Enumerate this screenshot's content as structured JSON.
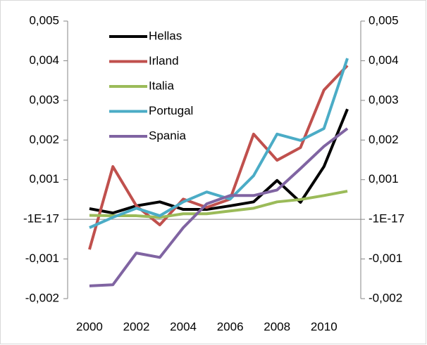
{
  "chart_data": {
    "type": "line",
    "x": [
      2000,
      2001,
      2002,
      2003,
      2004,
      2005,
      2006,
      2007,
      2008,
      2009,
      2010,
      2011
    ],
    "series": [
      {
        "name": "Hellas",
        "color": "#000000",
        "values": [
          0.00027,
          0.00016,
          0.00034,
          0.00044,
          0.00025,
          0.00025,
          0.00034,
          0.00044,
          0.00098,
          0.00043,
          0.00133,
          0.00278
        ]
      },
      {
        "name": "Irland",
        "color": "#c0504d",
        "values": [
          -0.00076,
          0.00133,
          0.00034,
          -0.00014,
          0.00051,
          0.0003,
          0.00051,
          0.00215,
          0.00149,
          0.00181,
          0.00326,
          0.00388
        ]
      },
      {
        "name": "Italia",
        "color": "#9bbb59",
        "values": [
          0.0001,
          9e-05,
          9e-05,
          5e-05,
          0.00014,
          0.00014,
          0.00021,
          0.00028,
          0.00044,
          0.0005,
          0.0006,
          0.00071
        ]
      },
      {
        "name": "Portugal",
        "color": "#4bacc6",
        "values": [
          -0.00021,
          5e-05,
          0.00028,
          9e-05,
          0.00044,
          0.00069,
          0.00051,
          0.0011,
          0.00215,
          0.00199,
          0.00229,
          0.00406
        ]
      },
      {
        "name": "Spania",
        "color": "#8064a2",
        "values": [
          -0.00168,
          -0.00165,
          -0.00085,
          -0.00096,
          -0.00021,
          0.00039,
          0.0006,
          0.0006,
          0.00074,
          0.00128,
          0.00184,
          0.00229
        ]
      }
    ],
    "xlim": [
      1999.07,
      2011.57
    ],
    "xticks": [
      2000,
      2002,
      2004,
      2006,
      2008,
      2010
    ],
    "ylim": [
      -0.002,
      0.005
    ],
    "yticks": [
      {
        "value": -0.002,
        "label": "-0,002"
      },
      {
        "value": -0.001,
        "label": "-0,001"
      },
      {
        "value": -1e-17,
        "label": "-1E-17"
      },
      {
        "value": 0.001,
        "label": "0,001"
      },
      {
        "value": 0.002,
        "label": "0,002"
      },
      {
        "value": 0.003,
        "label": "0,003"
      },
      {
        "value": 0.004,
        "label": "0,004"
      },
      {
        "value": 0.005,
        "label": "0,005"
      }
    ],
    "y2lim": [
      -0.002,
      0.005
    ],
    "y2ticks": [
      {
        "value": -0.002,
        "label": "-0,002"
      },
      {
        "value": -0.001,
        "label": "-0,001"
      },
      {
        "value": -1e-17,
        "label": "-1E-17"
      },
      {
        "value": 0.001,
        "label": "0,001"
      },
      {
        "value": 0.002,
        "label": "0,002"
      },
      {
        "value": 0.003,
        "label": "0,003"
      },
      {
        "value": 0.004,
        "label": "0,004"
      },
      {
        "value": 0.005,
        "label": "0,005"
      }
    ],
    "legend": "top-left"
  }
}
